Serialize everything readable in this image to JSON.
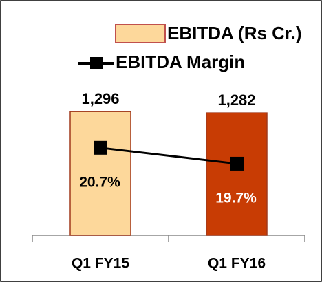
{
  "chart_data": {
    "type": "bar",
    "categories": [
      "Q1 FY15",
      "Q1 FY16"
    ],
    "series": [
      {
        "name": "EBITDA (Rs Cr.)",
        "type": "bar",
        "colors": [
          "#fdd89b",
          "#c83c04"
        ],
        "values": [
          1296,
          1282
        ],
        "value_labels": [
          "1,296",
          "1,282"
        ]
      },
      {
        "name": "EBITDA Margin",
        "type": "line",
        "axis": "y2",
        "color": "#000000",
        "values": [
          20.7,
          19.7
        ],
        "value_labels": [
          "20.7%",
          "19.7%"
        ]
      }
    ],
    "ylim": [
      0,
      1600
    ],
    "y2lim": [
      15.2,
      24.8
    ]
  }
}
